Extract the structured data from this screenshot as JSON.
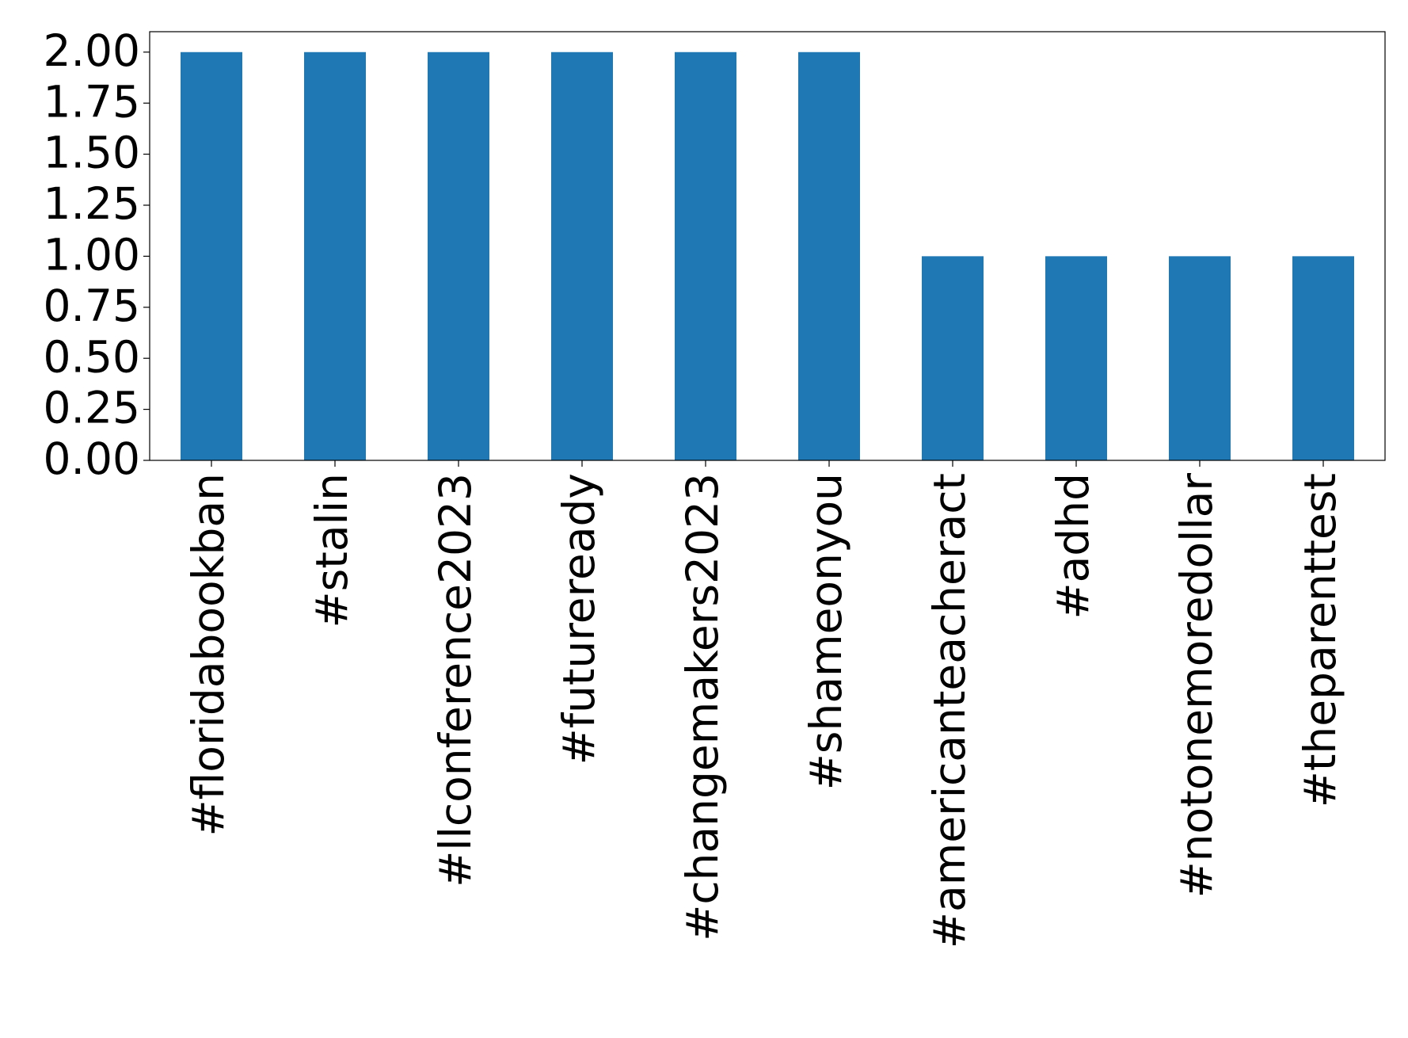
{
  "chart_data": {
    "type": "bar",
    "categories": [
      "#floridabookban",
      "#stalin",
      "#llconference2023",
      "#futureready",
      "#changemakers2023",
      "#shameonyou",
      "#americanteacheract",
      "#adhd",
      "#notonemoredollar",
      "#theparenttest"
    ],
    "values": [
      2,
      2,
      2,
      2,
      2,
      2,
      1,
      1,
      1,
      1
    ],
    "color": "#1f77b4",
    "ylim": [
      0,
      2.1
    ],
    "yticks": [
      {
        "value": 0,
        "label": "0.00"
      },
      {
        "value": 0.25,
        "label": "0.25"
      },
      {
        "value": 0.5,
        "label": "0.50"
      },
      {
        "value": 0.75,
        "label": "0.75"
      },
      {
        "value": 1,
        "label": "1.00"
      },
      {
        "value": 1.25,
        "label": "1.25"
      },
      {
        "value": 1.5,
        "label": "1.50"
      },
      {
        "value": 1.75,
        "label": "1.75"
      },
      {
        "value": 2,
        "label": "2.00"
      }
    ],
    "grid": false
  }
}
